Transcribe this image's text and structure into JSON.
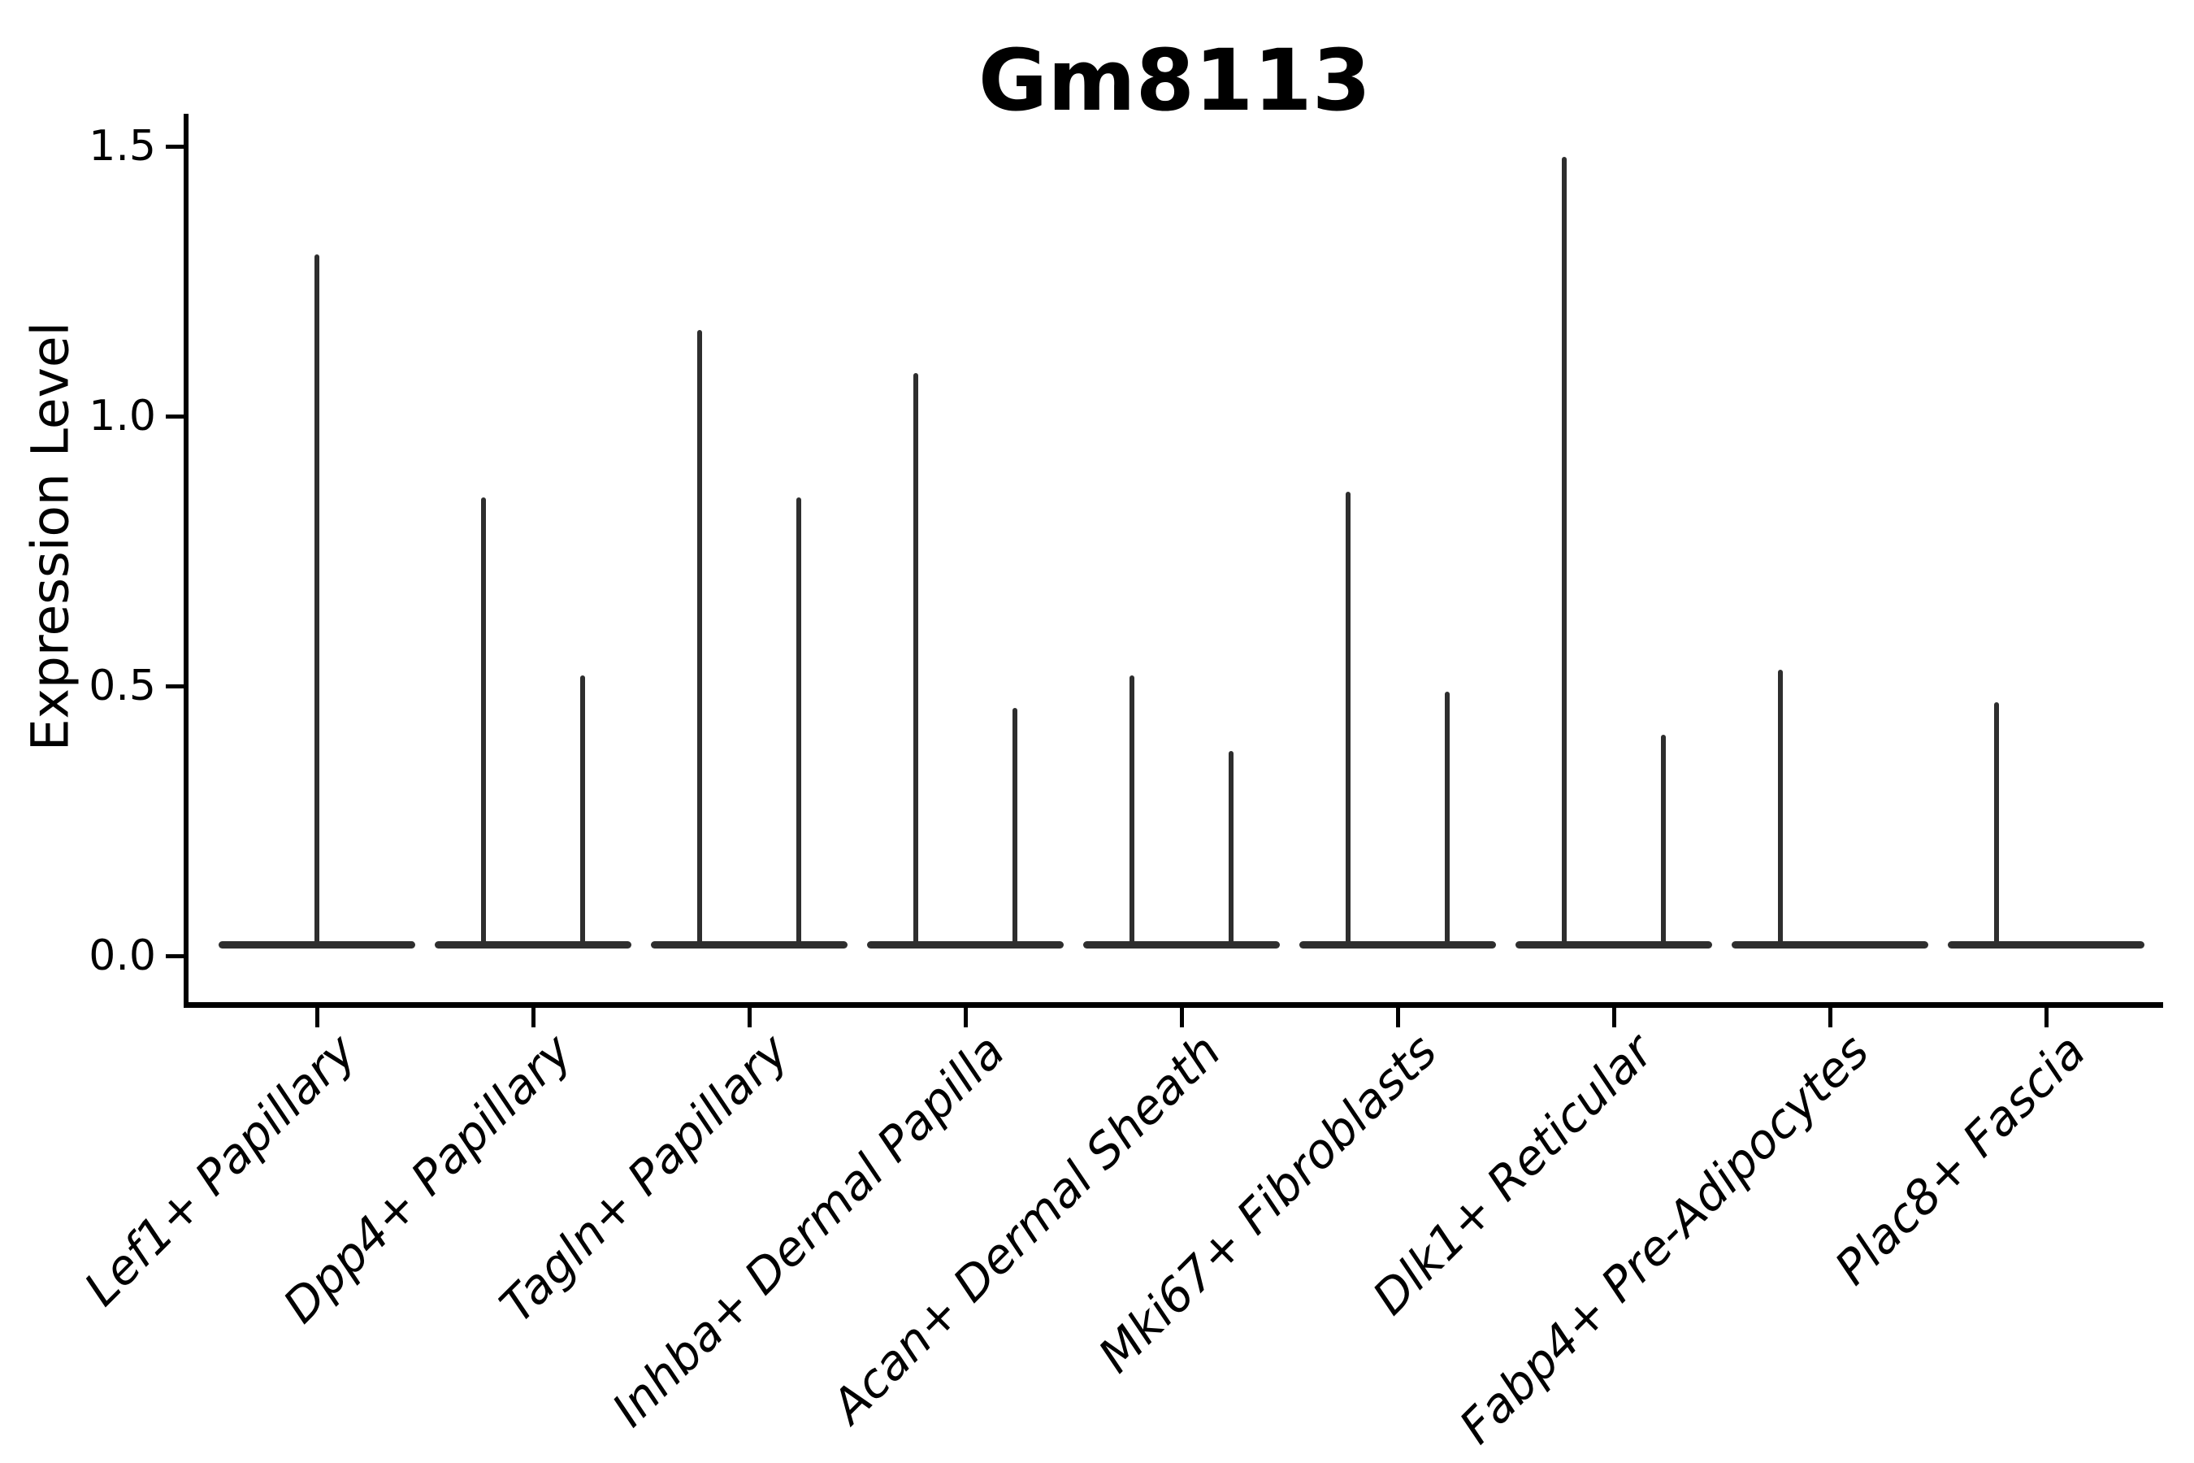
{
  "title": "Gm8113",
  "ylabel": "Expression Level",
  "chart_data": {
    "type": "violin",
    "title": "Gm8113",
    "xlabel": "",
    "ylabel": "Expression Level",
    "ylim": [
      0,
      1.5
    ],
    "yticks": [
      "0.0",
      "0.5",
      "1.0",
      "1.5"
    ],
    "ytick_values": [
      0.0,
      0.5,
      1.0,
      1.5
    ],
    "grid": false,
    "legend": false,
    "style_note": "Seurat-style expression violin plot: each violin is a flat dense mass at 0 with a thin vertical spike rising to the maximum expression value; categories 2-7 show two side-by-side sub-violin spikes, category 1 a single centered spike, categories 8-9 a single left-offset spike",
    "categories": [
      "Lef1+ Papillary",
      "Dpp4+ Papillary",
      "Tagln+ Papillary",
      "Inhba+ Dermal Papilla",
      "Acan+ Dermal Sheath",
      "Mki67+ Fibroblasts",
      "Dlk1+ Reticular",
      "Fabp4+ Pre-Adipocytes",
      "Plac8+ Fascia"
    ],
    "violins": [
      {
        "category": "Lef1+ Papillary",
        "baseline": 0,
        "spikes": [
          {
            "offset": "center",
            "max": 1.3
          }
        ]
      },
      {
        "category": "Dpp4+ Papillary",
        "baseline": 0,
        "spikes": [
          {
            "offset": "left",
            "max": 0.85
          },
          {
            "offset": "right",
            "max": 0.52
          }
        ]
      },
      {
        "category": "Tagln+ Papillary",
        "baseline": 0,
        "spikes": [
          {
            "offset": "left",
            "max": 1.16
          },
          {
            "offset": "right",
            "max": 0.85
          }
        ]
      },
      {
        "category": "Inhba+ Dermal Papilla",
        "baseline": 0,
        "spikes": [
          {
            "offset": "left",
            "max": 1.08
          },
          {
            "offset": "right",
            "max": 0.46
          }
        ]
      },
      {
        "category": "Acan+ Dermal Sheath",
        "baseline": 0,
        "spikes": [
          {
            "offset": "left",
            "max": 0.52
          },
          {
            "offset": "right",
            "max": 0.38
          }
        ]
      },
      {
        "category": "Mki67+ Fibroblasts",
        "baseline": 0,
        "spikes": [
          {
            "offset": "left",
            "max": 0.86
          },
          {
            "offset": "right",
            "max": 0.49
          }
        ]
      },
      {
        "category": "Dlk1+ Reticular",
        "baseline": 0,
        "spikes": [
          {
            "offset": "left",
            "max": 1.48
          },
          {
            "offset": "right",
            "max": 0.41
          }
        ]
      },
      {
        "category": "Fabp4+ Pre-Adipocytes",
        "baseline": 0,
        "spikes": [
          {
            "offset": "left",
            "max": 0.53
          }
        ]
      },
      {
        "category": "Plac8+ Fascia",
        "baseline": 0,
        "spikes": [
          {
            "offset": "left",
            "max": 0.47
          }
        ]
      }
    ],
    "colors": {
      "violin": "#2e2e2e",
      "axis": "#000000",
      "text": "#000000",
      "background": "#ffffff"
    }
  }
}
